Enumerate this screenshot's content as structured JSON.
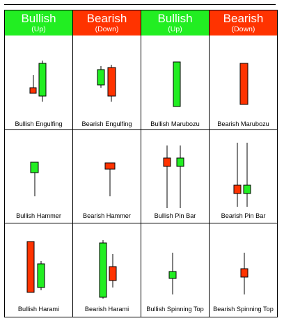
{
  "colors": {
    "bull": "#22ee22",
    "bear": "#ff3300"
  },
  "headers": [
    {
      "title": "Bullish",
      "sub": "(Up)",
      "tone": "bull"
    },
    {
      "title": "Bearish",
      "sub": "(Down)",
      "tone": "bear"
    },
    {
      "title": "Bullish",
      "sub": "(Up)",
      "tone": "bull"
    },
    {
      "title": "Bearish",
      "sub": "(Down)",
      "tone": "bear"
    }
  ],
  "rows": [
    [
      {
        "label": "Bullish Engulfing"
      },
      {
        "label": "Bearish Engulfing"
      },
      {
        "label": "Bullish Marubozu"
      },
      {
        "label": "Bearish Marubozu"
      }
    ],
    [
      {
        "label": "Bullish Hammer"
      },
      {
        "label": "Bearish Hammer"
      },
      {
        "label": "Bullish Pin Bar"
      },
      {
        "label": "Bearish Pin Bar"
      }
    ],
    [
      {
        "label": "Bullish Harami"
      },
      {
        "label": "Bearish Harami"
      },
      {
        "label": "Bullish Spinning Top"
      },
      {
        "label": "Bearish Spinning Top"
      }
    ]
  ]
}
